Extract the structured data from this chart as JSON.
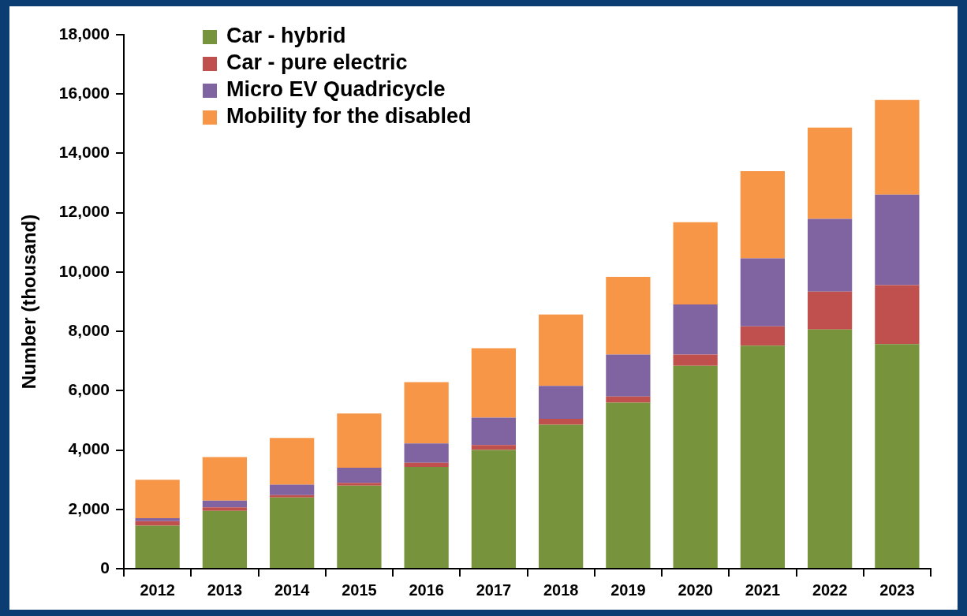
{
  "chart_data": {
    "type": "bar",
    "stacked": true,
    "ylabel": "Number (thousand)",
    "categories": [
      "2012",
      "2013",
      "2014",
      "2015",
      "2016",
      "2017",
      "2018",
      "2019",
      "2020",
      "2021",
      "2022",
      "2023"
    ],
    "series": [
      {
        "name": "Car - hybrid",
        "color": "#77933c",
        "values": [
          1450,
          1950,
          2400,
          2800,
          3430,
          4000,
          4850,
          5600,
          6840,
          7520,
          8060,
          7570
        ]
      },
      {
        "name": "Car - pure electric",
        "color": "#c0504d",
        "values": [
          150,
          120,
          80,
          90,
          140,
          170,
          200,
          200,
          380,
          650,
          1280,
          1990
        ]
      },
      {
        "name": "Micro EV Quadricycle",
        "color": "#8064a2",
        "values": [
          100,
          220,
          350,
          510,
          650,
          920,
          1110,
          1420,
          1690,
          2290,
          2450,
          3050
        ]
      },
      {
        "name": "Mobility for the disabled",
        "color": "#f79646",
        "values": [
          1300,
          1470,
          1580,
          1830,
          2070,
          2340,
          2410,
          2620,
          2770,
          2940,
          3080,
          3190
        ]
      }
    ],
    "ylim": [
      0,
      18000
    ],
    "yticks": [
      {
        "value": 0,
        "label": "0"
      },
      {
        "value": 2000,
        "label": "2,000"
      },
      {
        "value": 4000,
        "label": "4,000"
      },
      {
        "value": 6000,
        "label": "6,000"
      },
      {
        "value": 8000,
        "label": "8,000"
      },
      {
        "value": 10000,
        "label": "10,000"
      },
      {
        "value": 12000,
        "label": "12,000"
      },
      {
        "value": 14000,
        "label": "14,000"
      },
      {
        "value": 16000,
        "label": "16,000"
      },
      {
        "value": 18000,
        "label": "18,000"
      }
    ],
    "grid": false,
    "legend": "top left"
  }
}
